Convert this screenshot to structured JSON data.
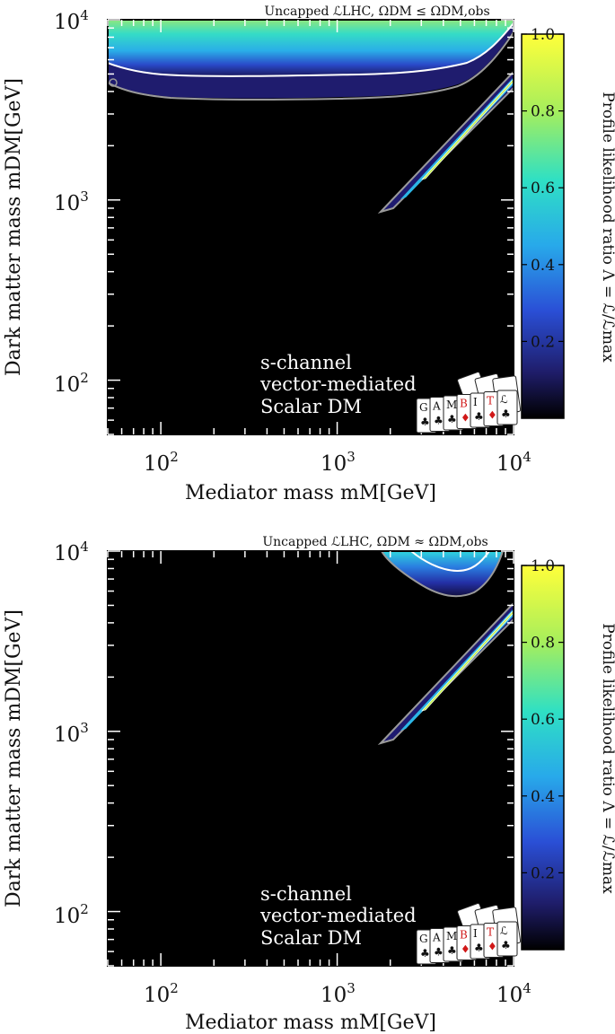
{
  "chart_data": [
    {
      "type": "heatmap",
      "title": "Uncapped ℒLHC, ΩDM ≤ ΩDM,obs",
      "xlabel": "Mediator mass mM[GeV]",
      "ylabel": "Dark matter mass mDM[GeV]",
      "xscale": "log",
      "yscale": "log",
      "xlim": [
        50,
        10000
      ],
      "ylim": [
        50,
        10000
      ],
      "xticks": [
        "10^2",
        "10^3",
        "10^4"
      ],
      "yticks": [
        "10^2",
        "10^3",
        "10^4"
      ],
      "colorbar": {
        "label": "Profile likelihood ratio Λ = ℒ/ℒmax",
        "range": [
          0,
          1.0
        ],
        "ticks": [
          "0.2",
          "0.4",
          "0.6",
          "0.8",
          "1.0"
        ],
        "colors": [
          "#000000",
          "#1f1d6a",
          "#2a4fd6",
          "#28a9ea",
          "#2fe0c4",
          "#a6ee5c",
          "#ffff3a"
        ]
      },
      "annotation": [
        "s-channel",
        "vector-mediated",
        "Scalar DM"
      ],
      "regions": [
        {
          "name": "high-mDM band",
          "x_range": [
            50,
            10000
          ],
          "y_lower_contour_1sigma": [
            [
              50,
              5600
            ],
            [
              100,
              5200
            ],
            [
              300,
              4900
            ],
            [
              1000,
              5000
            ],
            [
              3000,
              5300
            ],
            [
              6000,
              6500
            ],
            [
              8000,
              8500
            ],
            [
              10000,
              10000
            ]
          ],
          "y_lower_contour_2sigma": [
            [
              50,
              4300
            ],
            [
              100,
              3900
            ],
            [
              300,
              3800
            ],
            [
              1000,
              3800
            ],
            [
              3000,
              4200
            ],
            [
              6000,
              5800
            ],
            [
              8000,
              8000
            ],
            [
              10000,
              10000
            ]
          ],
          "peak_likelihood": 0.7
        },
        {
          "name": "resonance strip",
          "x_range": [
            1900,
            10000
          ],
          "ridge": [
            [
              1900,
              900
            ],
            [
              3000,
              1450
            ],
            [
              5000,
              2450
            ],
            [
              8000,
              3900
            ],
            [
              10000,
              4800
            ]
          ],
          "peak_likelihood": 1.0
        }
      ]
    },
    {
      "type": "heatmap",
      "title": "Uncapped ℒLHC, ΩDM ≈ ΩDM,obs",
      "xlabel": "Mediator mass mM[GeV]",
      "ylabel": "Dark matter mass mDM[GeV]",
      "xscale": "log",
      "yscale": "log",
      "xlim": [
        50,
        10000
      ],
      "ylim": [
        50,
        10000
      ],
      "xticks": [
        "10^2",
        "10^3",
        "10^4"
      ],
      "yticks": [
        "10^2",
        "10^3",
        "10^4"
      ],
      "colorbar": {
        "label": "Profile likelihood ratio Λ = ℒ/ℒmax",
        "range": [
          0,
          1.0
        ],
        "ticks": [
          "0.2",
          "0.4",
          "0.6",
          "0.8",
          "1.0"
        ],
        "colors": [
          "#000000",
          "#1f1d6a",
          "#2a4fd6",
          "#28a9ea",
          "#2fe0c4",
          "#a6ee5c",
          "#ffff3a"
        ]
      },
      "annotation": [
        "s-channel",
        "vector-mediated",
        "Scalar DM"
      ],
      "regions": [
        {
          "name": "high-mDM blob",
          "x_range": [
            2800,
            9000
          ],
          "peak_likelihood": 0.5
        },
        {
          "name": "resonance strip",
          "x_range": [
            1900,
            10000
          ],
          "ridge": [
            [
              1900,
              900
            ],
            [
              3000,
              1450
            ],
            [
              5000,
              2450
            ],
            [
              8000,
              3900
            ],
            [
              10000,
              4800
            ]
          ],
          "peak_likelihood": 1.0
        }
      ]
    }
  ],
  "logo": {
    "name": "GAMBIT",
    "letters": [
      "G",
      "A",
      "M",
      "B",
      "I",
      "T",
      "ℒ"
    ]
  }
}
